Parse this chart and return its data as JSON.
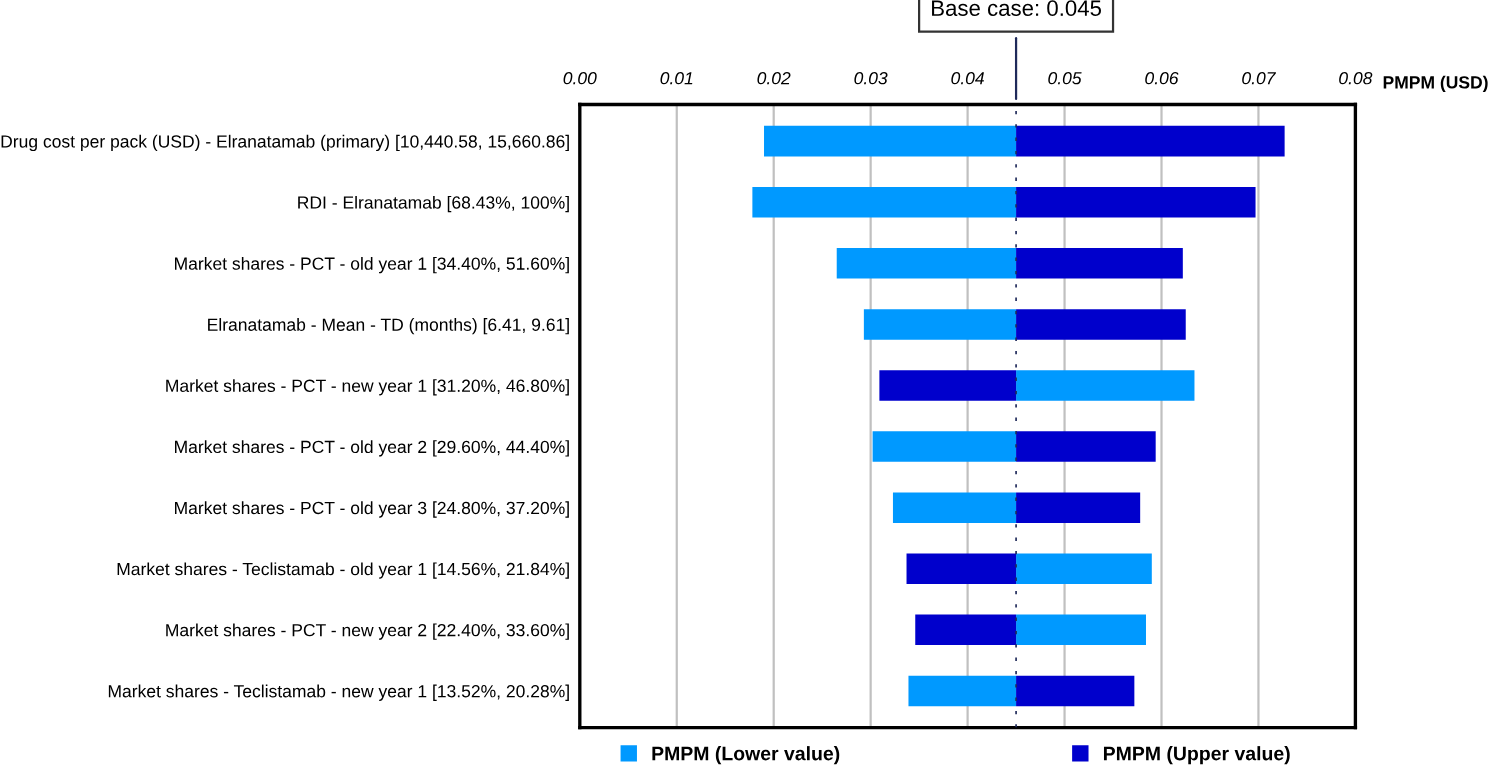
{
  "chart_data": {
    "type": "bar",
    "orientation": "horizontal",
    "categories": [
      "Drug cost per pack (USD) - Elranatamab (primary) [10,440.58, 15,660.86]",
      "RDI - Elranatamab [68.43%, 100%]",
      "Market shares - PCT - old year 1 [34.40%, 51.60%]",
      "Elranatamab - Mean - TD (months) [6.41, 9.61]",
      "Market shares - PCT - new year 1 [31.20%, 46.80%]",
      "Market shares - PCT - old year 2 [29.60%, 44.40%]",
      "Market shares - PCT - old year 3 [24.80%, 37.20%]",
      "Market shares - Teclistamab - old year 1 [14.56%, 21.84%]",
      "Market shares - PCT - new year 2 [22.40%, 33.60%]",
      "Market shares - Teclistamab - new year 1 [13.52%, 20.28%]"
    ],
    "series": [
      {
        "name": "PMPM (Lower value)",
        "color": "#0099ff",
        "base": [
          0.045,
          0.045,
          0.045,
          0.045,
          0.045,
          0.045,
          0.045,
          0.045,
          0.045,
          0.045
        ],
        "values": [
          -0.026,
          -0.0272,
          -0.0185,
          -0.0157,
          0.0184,
          -0.0148,
          -0.0127,
          0.014,
          0.0134,
          -0.0111
        ]
      },
      {
        "name": "PMPM (Upper value)",
        "color": "#0000cc",
        "base": [
          0.045,
          0.045,
          0.045,
          0.045,
          0.045,
          0.045,
          0.045,
          0.045,
          0.045,
          0.045
        ],
        "values": [
          0.0277,
          0.0247,
          0.0172,
          0.0175,
          -0.0141,
          0.0144,
          0.0128,
          -0.0113,
          -0.0104,
          0.0122
        ]
      }
    ],
    "xlabel": "PMPM (USD)",
    "xlim": [
      0,
      0.08
    ],
    "xticks": [
      {
        "value": 0,
        "label": "0.00"
      },
      {
        "value": 0.01,
        "label": "0.01"
      },
      {
        "value": 0.02,
        "label": "0.02"
      },
      {
        "value": 0.03,
        "label": "0.03"
      },
      {
        "value": 0.04,
        "label": "0.04"
      },
      {
        "value": 0.05,
        "label": "0.05"
      },
      {
        "value": 0.06,
        "label": "0.06"
      },
      {
        "value": 0.07,
        "label": "0.07"
      },
      {
        "value": 0.08,
        "label": "0.08"
      }
    ],
    "ref_lines": [
      {
        "axis": "x",
        "value": 0.045,
        "label": "Base case: 0.045",
        "color": "#1f2a5a"
      }
    ],
    "grid": "x",
    "legend": "bottom"
  }
}
